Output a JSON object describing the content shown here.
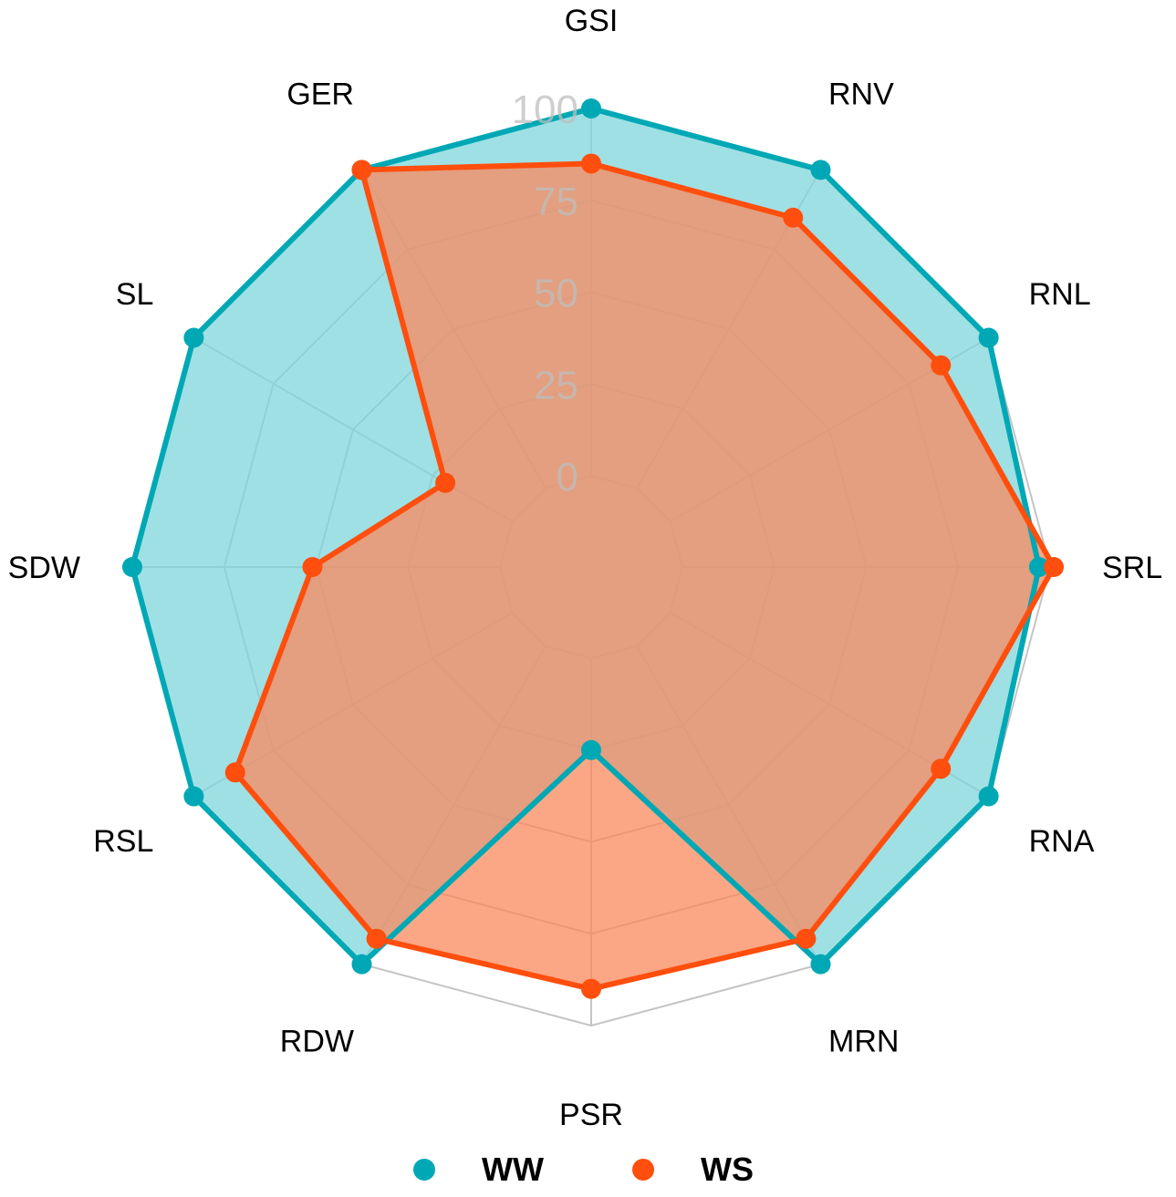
{
  "chart_data": {
    "type": "radar",
    "axes": [
      "GSI",
      "RNV",
      "RNL",
      "SRL",
      "RNA",
      "MRN",
      "PSR",
      "RDW",
      "RSL",
      "SDW",
      "SL",
      "GER"
    ],
    "ticks": [
      0,
      25,
      50,
      75,
      100
    ],
    "tick_labels": [
      "0",
      "25",
      "50",
      "75",
      "100"
    ],
    "range": [
      0,
      100
    ],
    "grid": true,
    "legend_position": "bottom",
    "series": [
      {
        "name": "WW",
        "color": "#00A8B5",
        "fill": "#7FD5DB",
        "values": [
          100,
          100,
          100,
          97,
          100,
          100,
          25,
          100,
          100,
          100,
          100,
          100
        ]
      },
      {
        "name": "WS",
        "color": "#FF4E0D",
        "fill": "#F98A5E",
        "values": [
          85,
          85,
          85,
          101,
          85,
          92,
          90,
          92,
          87,
          51,
          21,
          100
        ]
      }
    ]
  }
}
